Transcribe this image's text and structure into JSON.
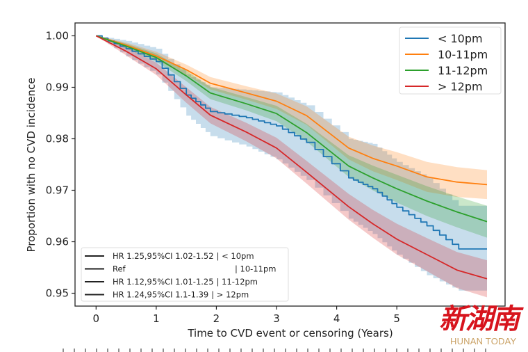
{
  "chart_data": {
    "type": "line",
    "title": "",
    "xlabel": "Time to CVD event or censoring (Years)",
    "ylabel": "Proportion with no CVD incidence",
    "xlim": [
      -0.35,
      6.8
    ],
    "ylim": [
      0.9475,
      1.0025
    ],
    "xticks": [
      0,
      1,
      2,
      3,
      4,
      5
    ],
    "xtick_labels": [
      "0",
      "1",
      "2",
      "3",
      "4",
      "5"
    ],
    "yticks": [
      0.95,
      0.96,
      0.97,
      0.98,
      0.99,
      1.0
    ],
    "ytick_labels": [
      "0.95",
      "0.96",
      "0.97",
      "0.98",
      "0.99",
      "1.00"
    ],
    "grid": false,
    "legend_position": "top-right",
    "series": [
      {
        "name": "< 10pm",
        "color": "#1f77b4",
        "step": true,
        "x": [
          0,
          0.5,
          1,
          1.5,
          1.9,
          2.5,
          3,
          3.5,
          4.2,
          4.6,
          5,
          5.5,
          6.03,
          6.5
        ],
        "values": [
          1.0,
          0.9975,
          0.995,
          0.9885,
          0.9853,
          0.9841,
          0.9825,
          0.9793,
          0.9724,
          0.9703,
          0.9667,
          0.9631,
          0.9586,
          0.9586
        ],
        "ci_lower": [
          1.0,
          0.996,
          0.9925,
          0.9845,
          0.9805,
          0.9785,
          0.976,
          0.972,
          0.9645,
          0.9615,
          0.9575,
          0.9535,
          0.9505,
          0.9505
        ],
        "ci_upper": [
          1.0,
          0.999,
          0.9975,
          0.9925,
          0.99,
          0.9895,
          0.989,
          0.9865,
          0.98,
          0.979,
          0.9755,
          0.9725,
          0.967,
          0.967
        ]
      },
      {
        "name": "10-11pm",
        "color": "#ff7f0e",
        "step": false,
        "x": [
          0,
          0.5,
          1,
          1.5,
          1.9,
          2.5,
          3,
          3.5,
          4.2,
          4.6,
          5,
          5.5,
          6,
          6.5
        ],
        "values": [
          1.0,
          0.9982,
          0.9961,
          0.9934,
          0.9908,
          0.9889,
          0.9873,
          0.9845,
          0.9782,
          0.9762,
          0.9747,
          0.9726,
          0.9716,
          0.9711
        ],
        "ci_lower": [
          1.0,
          0.9977,
          0.9953,
          0.9924,
          0.9896,
          0.9876,
          0.9858,
          0.9827,
          0.976,
          0.9737,
          0.972,
          0.9697,
          0.9687,
          0.9683
        ],
        "ci_upper": [
          1.0,
          0.9987,
          0.9969,
          0.9944,
          0.992,
          0.9902,
          0.9888,
          0.9863,
          0.9804,
          0.9787,
          0.9774,
          0.9755,
          0.9745,
          0.9739
        ]
      },
      {
        "name": "11-12pm",
        "color": "#2ca02c",
        "step": false,
        "x": [
          0,
          0.5,
          1,
          1.5,
          1.9,
          2.5,
          3,
          3.5,
          4.2,
          4.6,
          5,
          5.5,
          6,
          6.5
        ],
        "values": [
          1.0,
          0.998,
          0.9958,
          0.9922,
          0.9889,
          0.9868,
          0.9849,
          0.9812,
          0.9747,
          0.9724,
          0.9703,
          0.9679,
          0.9658,
          0.9639
        ],
        "ci_lower": [
          1.0,
          0.9975,
          0.995,
          0.9912,
          0.9877,
          0.9855,
          0.9834,
          0.9795,
          0.9726,
          0.97,
          0.9676,
          0.965,
          0.9628,
          0.9608
        ],
        "ci_upper": [
          1.0,
          0.9985,
          0.9966,
          0.9932,
          0.9901,
          0.9881,
          0.9864,
          0.9829,
          0.9768,
          0.9748,
          0.973,
          0.9708,
          0.9688,
          0.967
        ]
      },
      {
        "name": "> 12pm",
        "color": "#d62728",
        "step": false,
        "x": [
          0,
          0.5,
          1,
          1.5,
          1.9,
          2.5,
          3,
          3.5,
          4.2,
          4.6,
          5,
          5.5,
          6,
          6.5
        ],
        "values": [
          1.0,
          0.997,
          0.9936,
          0.9885,
          0.9846,
          0.9813,
          0.9782,
          0.9735,
          0.9668,
          0.9635,
          0.9605,
          0.9575,
          0.9545,
          0.9528
        ],
        "ci_lower": [
          1.0,
          0.9962,
          0.9924,
          0.987,
          0.983,
          0.9795,
          0.9762,
          0.9713,
          0.9643,
          0.9608,
          0.9575,
          0.9543,
          0.951,
          0.9492
        ],
        "ci_upper": [
          1.0,
          0.9978,
          0.9948,
          0.99,
          0.9862,
          0.9831,
          0.9802,
          0.9757,
          0.9693,
          0.9662,
          0.9635,
          0.9607,
          0.958,
          0.9564
        ]
      }
    ],
    "hr_legend": [
      {
        "label": "HR 1.25,95%CI 1.02-1.52",
        "group": "| < 10pm"
      },
      {
        "label": "Ref",
        "group": "| 10-11pm"
      },
      {
        "label": "HR 1.12,95%CI 1.01-1.25",
        "group": "| 11-12pm"
      },
      {
        "label": "HR 1.24,95%CI 1.1-1.39",
        "group": "| > 12pm"
      }
    ]
  },
  "watermark": {
    "chinese": "新湖南",
    "english": "HUNAN TODAY"
  }
}
